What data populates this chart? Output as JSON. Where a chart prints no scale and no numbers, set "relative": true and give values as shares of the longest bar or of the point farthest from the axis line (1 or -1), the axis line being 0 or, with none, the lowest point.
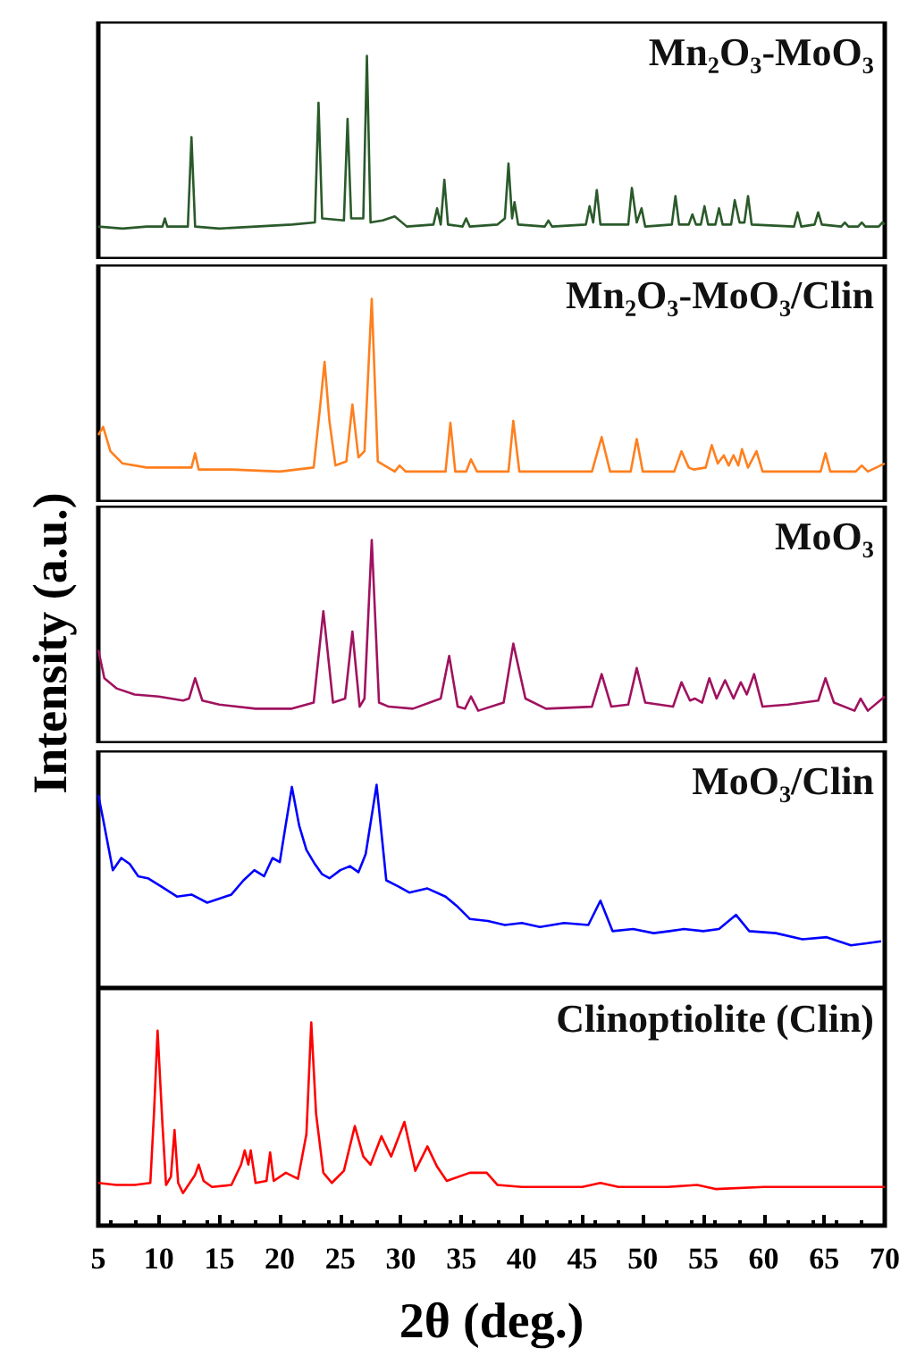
{
  "chart_data": [
    {
      "type": "line",
      "relative": true,
      "xlim": [
        5,
        70
      ],
      "tick_labels": false,
      "series": [
        {
          "name": "Mn₂O₃-MoO₃",
          "color": "#2a5a2a",
          "x": [
            5,
            7,
            9,
            10.3,
            10.5,
            10.7,
            12.4,
            12.7,
            13.0,
            15,
            18,
            21,
            22.9,
            23.2,
            23.5,
            25.3,
            25.6,
            25.9,
            26.9,
            27.2,
            27.5,
            28.5,
            29.5,
            30.5,
            32.7,
            33.0,
            33.3,
            33.6,
            33.9,
            35.1,
            35.4,
            35.7,
            38.0,
            38.6,
            38.9,
            39.2,
            39.4,
            39.7,
            41.9,
            42.2,
            42.5,
            45.3,
            45.6,
            45.9,
            46.2,
            46.5,
            48.8,
            49.1,
            49.5,
            49.9,
            50.2,
            52.4,
            52.7,
            53.0,
            53.8,
            54.1,
            54.4,
            54.8,
            55.1,
            55.4,
            56.0,
            56.3,
            56.6,
            57.3,
            57.6,
            58.0,
            58.4,
            58.7,
            59.0,
            62.5,
            62.8,
            63.1,
            64.2,
            64.5,
            64.8,
            66.4,
            66.7,
            67.0,
            67.8,
            68.1,
            68.4,
            69.5,
            69.8,
            70
          ],
          "values": [
            0.16,
            0.15,
            0.16,
            0.16,
            0.2,
            0.16,
            0.16,
            0.6,
            0.16,
            0.15,
            0.16,
            0.17,
            0.18,
            0.77,
            0.2,
            0.19,
            0.69,
            0.2,
            0.2,
            1.0,
            0.18,
            0.19,
            0.21,
            0.16,
            0.17,
            0.25,
            0.17,
            0.39,
            0.17,
            0.16,
            0.2,
            0.16,
            0.17,
            0.2,
            0.47,
            0.2,
            0.28,
            0.17,
            0.16,
            0.19,
            0.16,
            0.17,
            0.26,
            0.18,
            0.34,
            0.17,
            0.17,
            0.35,
            0.18,
            0.25,
            0.16,
            0.17,
            0.31,
            0.17,
            0.17,
            0.22,
            0.17,
            0.17,
            0.26,
            0.17,
            0.17,
            0.25,
            0.17,
            0.17,
            0.29,
            0.18,
            0.18,
            0.31,
            0.17,
            0.16,
            0.23,
            0.16,
            0.17,
            0.23,
            0.17,
            0.16,
            0.18,
            0.16,
            0.16,
            0.18,
            0.16,
            0.16,
            0.18,
            0.17
          ]
        }
      ]
    },
    {
      "type": "line",
      "relative": true,
      "xlim": [
        5,
        70
      ],
      "tick_labels": false,
      "series": [
        {
          "name": "Mn₂O₃-MoO₃/Clin",
          "color": "#ff7f1e",
          "x": [
            5,
            5.4,
            6,
            7,
            9,
            12.7,
            13.0,
            13.3,
            16,
            20,
            22.8,
            23.3,
            23.7,
            24.1,
            24.6,
            25.5,
            26.0,
            26.5,
            27.0,
            27.6,
            28.1,
            29.5,
            29.9,
            30.4,
            33.7,
            34.1,
            34.5,
            35.4,
            35.8,
            36.3,
            38.9,
            39.3,
            39.8,
            45.8,
            46.6,
            47.3,
            49.0,
            49.5,
            50.0,
            52.6,
            53.2,
            53.8,
            54.2,
            55.2,
            55.7,
            56.2,
            56.7,
            57.1,
            57.5,
            57.9,
            58.2,
            58.7,
            59.4,
            59.9,
            63,
            64.7,
            65.1,
            65.5,
            67.6,
            68.1,
            68.6,
            70
          ],
          "values": [
            0.33,
            0.37,
            0.25,
            0.19,
            0.17,
            0.17,
            0.24,
            0.16,
            0.16,
            0.15,
            0.17,
            0.45,
            0.69,
            0.4,
            0.18,
            0.2,
            0.48,
            0.22,
            0.25,
            1.0,
            0.2,
            0.15,
            0.18,
            0.15,
            0.15,
            0.39,
            0.15,
            0.15,
            0.21,
            0.15,
            0.15,
            0.4,
            0.15,
            0.15,
            0.32,
            0.15,
            0.15,
            0.31,
            0.15,
            0.15,
            0.25,
            0.17,
            0.16,
            0.17,
            0.28,
            0.19,
            0.23,
            0.18,
            0.23,
            0.18,
            0.26,
            0.17,
            0.25,
            0.15,
            0.15,
            0.15,
            0.24,
            0.15,
            0.15,
            0.18,
            0.15,
            0.19
          ]
        }
      ]
    },
    {
      "type": "line",
      "relative": true,
      "xlim": [
        5,
        70
      ],
      "tick_labels": false,
      "ylabel": "Intensity (a.u.)",
      "series": [
        {
          "name": "MoO₃",
          "color": "#a0125f",
          "x": [
            5,
            5.5,
            6.5,
            8,
            10,
            12,
            12.5,
            13.0,
            13.6,
            15,
            18,
            21,
            22.8,
            23.6,
            24.4,
            25.4,
            26.0,
            26.6,
            27.0,
            27.6,
            28.2,
            29,
            31,
            33.3,
            34.0,
            34.7,
            35.3,
            35.8,
            36.4,
            38.5,
            39.3,
            40.3,
            42,
            45.8,
            46.6,
            47.4,
            48.8,
            49.5,
            50.2,
            52.5,
            53.2,
            53.9,
            54.3,
            54.9,
            55.5,
            56.1,
            56.8,
            57.5,
            58.1,
            58.6,
            59.2,
            59.9,
            62,
            64.5,
            65.1,
            65.8,
            67.5,
            68.0,
            68.6,
            70
          ],
          "values": [
            0.46,
            0.32,
            0.27,
            0.24,
            0.23,
            0.21,
            0.22,
            0.32,
            0.21,
            0.19,
            0.17,
            0.17,
            0.2,
            0.65,
            0.2,
            0.22,
            0.55,
            0.18,
            0.22,
            1.0,
            0.2,
            0.18,
            0.17,
            0.22,
            0.43,
            0.18,
            0.17,
            0.23,
            0.16,
            0.2,
            0.49,
            0.22,
            0.17,
            0.18,
            0.34,
            0.18,
            0.19,
            0.37,
            0.2,
            0.18,
            0.3,
            0.21,
            0.22,
            0.2,
            0.32,
            0.22,
            0.31,
            0.22,
            0.3,
            0.24,
            0.34,
            0.18,
            0.19,
            0.21,
            0.32,
            0.2,
            0.16,
            0.22,
            0.16,
            0.23
          ]
        }
      ]
    },
    {
      "type": "line",
      "relative": true,
      "xlim": [
        5,
        70
      ],
      "tick_labels": false,
      "series": [
        {
          "name": "MoO₃/Clin",
          "color": "#0000ff",
          "x": [
            5,
            5.4,
            6.2,
            6.9,
            7.6,
            8.3,
            9.1,
            10.2,
            11.5,
            12.7,
            14.0,
            15.0,
            16.0,
            17.0,
            17.9,
            18.7,
            19.4,
            20.0,
            20.4,
            21.0,
            21.6,
            22.2,
            22.9,
            23.5,
            24.1,
            25.0,
            25.8,
            26.5,
            27.1,
            28.0,
            28.8,
            29.8,
            30.7,
            32.2,
            33.7,
            34.7,
            35.7,
            37.2,
            38.6,
            40.0,
            41.5,
            43.5,
            45.5,
            46.5,
            47.5,
            49.2,
            50.9,
            52.2,
            53.4,
            55.0,
            56.3,
            57.7,
            58.8,
            61.0,
            63.2,
            65.2,
            67.2,
            68.5,
            69.7
          ],
          "values": [
            0.95,
            0.83,
            0.58,
            0.64,
            0.61,
            0.55,
            0.54,
            0.5,
            0.45,
            0.46,
            0.42,
            0.44,
            0.46,
            0.53,
            0.58,
            0.55,
            0.64,
            0.62,
            0.77,
            0.99,
            0.8,
            0.68,
            0.61,
            0.56,
            0.54,
            0.58,
            0.6,
            0.57,
            0.66,
            1.0,
            0.53,
            0.5,
            0.47,
            0.49,
            0.45,
            0.4,
            0.34,
            0.33,
            0.31,
            0.32,
            0.3,
            0.32,
            0.31,
            0.43,
            0.28,
            0.29,
            0.27,
            0.28,
            0.29,
            0.28,
            0.29,
            0.36,
            0.28,
            0.27,
            0.24,
            0.25,
            0.21,
            0.22,
            0.23
          ]
        }
      ]
    },
    {
      "type": "line",
      "relative": true,
      "xlim": [
        5,
        70
      ],
      "xticks": [
        5,
        10,
        15,
        20,
        25,
        30,
        35,
        40,
        45,
        50,
        55,
        60,
        65,
        70
      ],
      "tick_labels": "x",
      "xlabel": "2θ (deg.)",
      "series": [
        {
          "name": "Clinoptiolite (Clin)",
          "color": "#ff0000",
          "x": [
            5,
            6.5,
            8,
            9.3,
            9.6,
            9.9,
            10.3,
            10.6,
            11.0,
            11.3,
            11.6,
            12.0,
            13.0,
            13.3,
            13.7,
            14.4,
            16,
            16.8,
            17.1,
            17.4,
            17.6,
            18.0,
            18.9,
            19.2,
            19.5,
            20.5,
            21.5,
            22.2,
            22.6,
            23.0,
            23.6,
            24.3,
            25.3,
            26.2,
            26.9,
            27.5,
            28.4,
            29.2,
            30.3,
            31.2,
            32.2,
            33.0,
            33.8,
            35.7,
            37.1,
            38.0,
            40,
            45,
            46.5,
            48,
            52,
            54.5,
            56,
            60,
            65,
            70
          ],
          "values": [
            0.21,
            0.2,
            0.2,
            0.21,
            0.55,
            0.96,
            0.5,
            0.2,
            0.24,
            0.47,
            0.21,
            0.16,
            0.25,
            0.3,
            0.22,
            0.19,
            0.2,
            0.3,
            0.37,
            0.3,
            0.37,
            0.21,
            0.22,
            0.36,
            0.22,
            0.26,
            0.23,
            0.45,
            1.0,
            0.55,
            0.26,
            0.21,
            0.27,
            0.49,
            0.34,
            0.3,
            0.44,
            0.34,
            0.51,
            0.27,
            0.39,
            0.29,
            0.22,
            0.26,
            0.26,
            0.2,
            0.19,
            0.19,
            0.21,
            0.19,
            0.19,
            0.2,
            0.18,
            0.19,
            0.19,
            0.19
          ]
        }
      ]
    }
  ]
}
